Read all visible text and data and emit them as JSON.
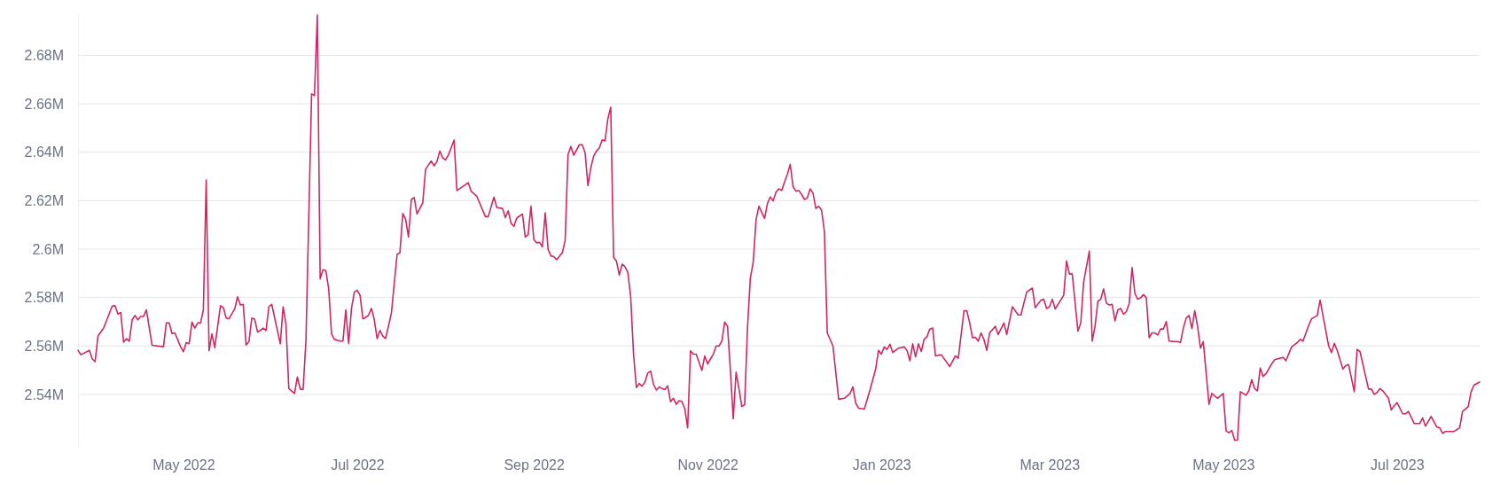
{
  "chart_data": {
    "type": "line",
    "color": "#d1265f",
    "grid": "y",
    "marker": "none",
    "line_style": "solid",
    "xlim": [
      "2022-03-25",
      "2023-07-30"
    ],
    "ylim": [
      2518000,
      2697000
    ],
    "xticks": [
      {
        "value": "2022-05-01",
        "label": "May 2022"
      },
      {
        "value": "2022-07-01",
        "label": "Jul 2022"
      },
      {
        "value": "2022-09-01",
        "label": "Sep 2022"
      },
      {
        "value": "2022-11-01",
        "label": "Nov 2022"
      },
      {
        "value": "2023-01-01",
        "label": "Jan 2023"
      },
      {
        "value": "2023-03-01",
        "label": "Mar 2023"
      },
      {
        "value": "2023-05-01",
        "label": "May 2023"
      },
      {
        "value": "2023-07-01",
        "label": "Jul 2023"
      }
    ],
    "yticks": [
      {
        "value": 2540000,
        "label": "2.54M"
      },
      {
        "value": 2560000,
        "label": "2.56M"
      },
      {
        "value": 2580000,
        "label": "2.58M"
      },
      {
        "value": 2600000,
        "label": "2.6M"
      },
      {
        "value": 2620000,
        "label": "2.62M"
      },
      {
        "value": 2640000,
        "label": "2.64M"
      },
      {
        "value": 2660000,
        "label": "2.66M"
      },
      {
        "value": 2680000,
        "label": "2.68M"
      }
    ],
    "x": [
      "2022-03-25",
      "2022-03-26",
      "2022-03-29",
      "2022-03-30",
      "2022-03-31",
      "2022-04-01",
      "2022-04-03",
      "2022-04-06",
      "2022-04-07",
      "2022-04-08",
      "2022-04-09",
      "2022-04-10",
      "2022-04-11",
      "2022-04-12",
      "2022-04-13",
      "2022-04-14",
      "2022-04-15",
      "2022-04-16",
      "2022-04-17",
      "2022-04-18",
      "2022-04-20",
      "2022-04-24",
      "2022-04-25",
      "2022-04-26",
      "2022-04-27",
      "2022-04-28",
      "2022-04-30",
      "2022-05-01",
      "2022-05-02",
      "2022-05-03",
      "2022-05-04",
      "2022-05-05",
      "2022-05-06",
      "2022-05-07",
      "2022-05-08",
      "2022-05-09",
      "2022-05-10",
      "2022-05-11",
      "2022-05-12",
      "2022-05-14",
      "2022-05-15",
      "2022-05-16",
      "2022-05-17",
      "2022-05-19",
      "2022-05-20",
      "2022-05-21",
      "2022-05-22",
      "2022-05-23",
      "2022-05-24",
      "2022-05-25",
      "2022-05-26",
      "2022-05-27",
      "2022-05-28",
      "2022-05-29",
      "2022-05-30",
      "2022-05-31",
      "2022-06-01",
      "2022-06-04",
      "2022-06-05",
      "2022-06-06",
      "2022-06-07",
      "2022-06-09",
      "2022-06-10",
      "2022-06-11",
      "2022-06-12",
      "2022-06-13",
      "2022-06-15",
      "2022-06-16",
      "2022-06-17",
      "2022-06-18",
      "2022-06-19",
      "2022-06-20",
      "2022-06-21",
      "2022-06-22",
      "2022-06-23",
      "2022-06-25",
      "2022-06-26",
      "2022-06-27",
      "2022-06-28",
      "2022-06-29",
      "2022-06-30",
      "2022-07-01",
      "2022-07-02",
      "2022-07-03",
      "2022-07-04",
      "2022-07-05",
      "2022-07-06",
      "2022-07-07",
      "2022-07-08",
      "2022-07-09",
      "2022-07-10",
      "2022-07-11",
      "2022-07-13",
      "2022-07-15",
      "2022-07-16",
      "2022-07-17",
      "2022-07-18",
      "2022-07-19",
      "2022-07-20",
      "2022-07-21",
      "2022-07-22",
      "2022-07-24",
      "2022-07-25",
      "2022-07-27",
      "2022-07-28",
      "2022-07-29",
      "2022-07-30",
      "2022-07-31",
      "2022-08-01",
      "2022-08-02",
      "2022-08-04",
      "2022-08-05",
      "2022-08-09",
      "2022-08-10",
      "2022-08-12",
      "2022-08-15",
      "2022-08-16",
      "2022-08-18",
      "2022-08-19",
      "2022-08-21",
      "2022-08-22",
      "2022-08-23",
      "2022-08-24",
      "2022-08-25",
      "2022-08-26",
      "2022-08-28",
      "2022-08-29",
      "2022-08-30",
      "2022-08-31",
      "2022-09-01",
      "2022-09-02",
      "2022-09-03",
      "2022-09-04",
      "2022-09-05",
      "2022-09-06",
      "2022-09-07",
      "2022-09-08",
      "2022-09-09",
      "2022-09-11",
      "2022-09-12",
      "2022-09-13",
      "2022-09-14",
      "2022-09-15",
      "2022-09-17",
      "2022-09-18",
      "2022-09-19",
      "2022-09-20",
      "2022-09-21",
      "2022-09-22",
      "2022-09-23",
      "2022-09-24",
      "2022-09-25",
      "2022-09-26",
      "2022-09-27",
      "2022-09-28",
      "2022-09-29",
      "2022-09-30",
      "2022-10-01",
      "2022-10-02",
      "2022-10-03",
      "2022-10-04",
      "2022-10-05",
      "2022-10-06",
      "2022-10-07",
      "2022-10-08",
      "2022-10-09",
      "2022-10-10",
      "2022-10-11",
      "2022-10-12",
      "2022-10-13",
      "2022-10-14",
      "2022-10-15",
      "2022-10-16",
      "2022-10-17",
      "2022-10-18",
      "2022-10-19",
      "2022-10-20",
      "2022-10-21",
      "2022-10-22",
      "2022-10-23",
      "2022-10-24",
      "2022-10-25",
      "2022-10-26",
      "2022-10-27",
      "2022-10-28",
      "2022-10-29",
      "2022-10-30",
      "2022-10-31",
      "2022-11-01",
      "2022-11-02",
      "2022-11-03",
      "2022-11-04",
      "2022-11-05",
      "2022-11-06",
      "2022-11-07",
      "2022-11-08",
      "2022-11-09",
      "2022-11-10",
      "2022-11-11",
      "2022-11-12",
      "2022-11-13",
      "2022-11-14",
      "2022-11-15",
      "2022-11-16",
      "2022-11-17",
      "2022-11-18",
      "2022-11-19",
      "2022-11-21",
      "2022-11-22",
      "2022-11-23",
      "2022-11-24",
      "2022-11-25",
      "2022-11-26",
      "2022-11-27",
      "2022-11-28",
      "2022-11-29",
      "2022-11-30",
      "2022-12-01",
      "2022-12-02",
      "2022-12-03",
      "2022-12-04",
      "2022-12-05",
      "2022-12-06",
      "2022-12-07",
      "2022-12-08",
      "2022-12-09",
      "2022-12-10",
      "2022-12-11",
      "2022-12-12",
      "2022-12-13",
      "2022-12-15",
      "2022-12-17",
      "2022-12-19",
      "2022-12-21",
      "2022-12-22",
      "2022-12-23",
      "2022-12-24",
      "2022-12-26",
      "2022-12-28",
      "2022-12-30",
      "2022-12-31",
      "2023-01-01",
      "2023-01-02",
      "2023-01-03",
      "2023-01-04",
      "2023-01-05",
      "2023-01-07",
      "2023-01-09",
      "2023-01-10",
      "2023-01-11",
      "2023-01-12",
      "2023-01-13",
      "2023-01-14",
      "2023-01-15",
      "2023-01-16",
      "2023-01-17",
      "2023-01-18",
      "2023-01-19",
      "2023-01-20",
      "2023-01-22",
      "2023-01-25",
      "2023-01-27",
      "2023-01-28",
      "2023-01-30",
      "2023-01-31",
      "2023-02-01",
      "2023-02-02",
      "2023-02-03",
      "2023-02-04",
      "2023-02-05",
      "2023-02-06",
      "2023-02-07",
      "2023-02-08",
      "2023-02-10",
      "2023-02-11",
      "2023-02-13",
      "2023-02-14",
      "2023-02-16",
      "2023-02-18",
      "2023-02-19",
      "2023-02-21",
      "2023-02-23",
      "2023-02-24",
      "2023-02-26",
      "2023-02-27",
      "2023-02-28",
      "2023-03-01",
      "2023-03-02",
      "2023-03-03",
      "2023-03-06",
      "2023-03-07",
      "2023-03-08",
      "2023-03-09",
      "2023-03-11",
      "2023-03-12",
      "2023-03-13",
      "2023-03-15",
      "2023-03-16",
      "2023-03-17",
      "2023-03-18",
      "2023-03-19",
      "2023-03-20",
      "2023-03-21",
      "2023-03-22",
      "2023-03-23",
      "2023-03-24",
      "2023-03-25",
      "2023-03-26",
      "2023-03-27",
      "2023-03-28",
      "2023-03-29",
      "2023-03-30",
      "2023-03-31",
      "2023-04-01",
      "2023-04-02",
      "2023-04-03",
      "2023-04-04",
      "2023-04-05",
      "2023-04-06",
      "2023-04-07",
      "2023-04-08",
      "2023-04-09",
      "2023-04-10",
      "2023-04-11",
      "2023-04-12",
      "2023-04-14",
      "2023-04-15",
      "2023-04-16",
      "2023-04-17",
      "2023-04-18",
      "2023-04-19",
      "2023-04-20",
      "2023-04-21",
      "2023-04-22",
      "2023-04-23",
      "2023-04-24",
      "2023-04-26",
      "2023-04-27",
      "2023-04-29",
      "2023-05-01",
      "2023-05-02",
      "2023-05-03",
      "2023-05-04",
      "2023-05-05",
      "2023-05-06",
      "2023-05-07",
      "2023-05-09",
      "2023-05-10",
      "2023-05-11",
      "2023-05-12",
      "2023-05-13",
      "2023-05-14",
      "2023-05-15",
      "2023-05-16",
      "2023-05-18",
      "2023-05-19",
      "2023-05-21",
      "2023-05-22",
      "2023-05-23",
      "2023-05-25",
      "2023-05-27",
      "2023-05-28",
      "2023-05-29",
      "2023-05-31",
      "2023-06-01",
      "2023-06-03",
      "2023-06-04",
      "2023-06-07",
      "2023-06-08",
      "2023-06-09",
      "2023-06-10",
      "2023-06-12",
      "2023-06-13",
      "2023-06-14",
      "2023-06-16",
      "2023-06-17",
      "2023-06-18",
      "2023-06-21",
      "2023-06-22",
      "2023-06-23",
      "2023-06-24",
      "2023-06-25",
      "2023-06-26",
      "2023-06-28",
      "2023-06-29",
      "2023-06-30",
      "2023-07-01",
      "2023-07-03",
      "2023-07-04",
      "2023-07-05",
      "2023-07-07",
      "2023-07-09",
      "2023-07-10",
      "2023-07-11",
      "2023-07-13",
      "2023-07-15",
      "2023-07-16",
      "2023-07-17",
      "2023-07-18",
      "2023-07-21",
      "2023-07-23",
      "2023-07-24",
      "2023-07-26",
      "2023-07-27",
      "2023-07-28",
      "2023-07-30"
    ],
    "values": [
      2558200,
      2556400,
      2558200,
      2554600,
      2553500,
      2564100,
      2567400,
      2576500,
      2576600,
      2573200,
      2573800,
      2561600,
      2563000,
      2562000,
      2570800,
      2572600,
      2570800,
      2572200,
      2572200,
      2574900,
      2560300,
      2559700,
      2569500,
      2569500,
      2565100,
      2565400,
      2559700,
      2557600,
      2561400,
      2560900,
      2569900,
      2567400,
      2569500,
      2569500,
      2574900,
      2628500,
      2558000,
      2565000,
      2559300,
      2576600,
      2575900,
      2571500,
      2571200,
      2575300,
      2580300,
      2576900,
      2577200,
      2560400,
      2561800,
      2571500,
      2571100,
      2565800,
      2566400,
      2567400,
      2566400,
      2576200,
      2577200,
      2560900,
      2576200,
      2568800,
      2542400,
      2540400,
      2547200,
      2542200,
      2542000,
      2562000,
      2664100,
      2663400,
      2696600,
      2587700,
      2591500,
      2591100,
      2583600,
      2565000,
      2562700,
      2562000,
      2562000,
      2574900,
      2560900,
      2575500,
      2582300,
      2583000,
      2580900,
      2571200,
      2571800,
      2572800,
      2575500,
      2570800,
      2563000,
      2566400,
      2564100,
      2563100,
      2573500,
      2597800,
      2598500,
      2614700,
      2612300,
      2605000,
      2620500,
      2621300,
      2614500,
      2619100,
      2633000,
      2636400,
      2634400,
      2636200,
      2640500,
      2637700,
      2636800,
      2638800,
      2645000,
      2624200,
      2627400,
      2623900,
      2621800,
      2613400,
      2613400,
      2621500,
      2617200,
      2616800,
      2613000,
      2615800,
      2610700,
      2609400,
      2612800,
      2614500,
      2605000,
      2605900,
      2617700,
      2603900,
      2602600,
      2602800,
      2600900,
      2615000,
      2599900,
      2597200,
      2596900,
      2595600,
      2598500,
      2603600,
      2639100,
      2642400,
      2638800,
      2643100,
      2643100,
      2639700,
      2626200,
      2633600,
      2638400,
      2640500,
      2641800,
      2645100,
      2644700,
      2653900,
      2658600,
      2596500,
      2595100,
      2589300,
      2593800,
      2592700,
      2590400,
      2580300,
      2556600,
      2542800,
      2544500,
      2543400,
      2545100,
      2548800,
      2549600,
      2544200,
      2541800,
      2543100,
      2542400,
      2542000,
      2543500,
      2537000,
      2538400,
      2535900,
      2537400,
      2537000,
      2534100,
      2526200,
      2558000,
      2556600,
      2556600,
      2553200,
      2549900,
      2555900,
      2552600,
      2554600,
      2556600,
      2560000,
      2560000,
      2562000,
      2569900,
      2568100,
      2549900,
      2529900,
      2549200,
      2542400,
      2535000,
      2535700,
      2567400,
      2588000,
      2594500,
      2612000,
      2617700,
      2612700,
      2618800,
      2621500,
      2619900,
      2623500,
      2624900,
      2624200,
      2627600,
      2630900,
      2635000,
      2625800,
      2623900,
      2624200,
      2622600,
      2620500,
      2621100,
      2624900,
      2623100,
      2616800,
      2617700,
      2616100,
      2607300,
      2565400,
      2560000,
      2538000,
      2538400,
      2540400,
      2543100,
      2536400,
      2534300,
      2533900,
      2541800,
      2550500,
      2558200,
      2556600,
      2559600,
      2558600,
      2560700,
      2557300,
      2559100,
      2559600,
      2558200,
      2553900,
      2560900,
      2555500,
      2560900,
      2557700,
      2562700,
      2563800,
      2567000,
      2567400,
      2555900,
      2556400,
      2551500,
      2555900,
      2554900,
      2574500,
      2574500,
      2569500,
      2563400,
      2563600,
      2562000,
      2565400,
      2562700,
      2558200,
      2565400,
      2568100,
      2564700,
      2569500,
      2564700,
      2576200,
      2572800,
      2572800,
      2582300,
      2583900,
      2575800,
      2578900,
      2579300,
      2575500,
      2576200,
      2579300,
      2575300,
      2580900,
      2595100,
      2589700,
      2589700,
      2566100,
      2569500,
      2586400,
      2599200,
      2562000,
      2568100,
      2578500,
      2579300,
      2583600,
      2577600,
      2576900,
      2577200,
      2570400,
      2574900,
      2575500,
      2573100,
      2574200,
      2577600,
      2592400,
      2581600,
      2579300,
      2579900,
      2581200,
      2579900,
      2563400,
      2565400,
      2565400,
      2564500,
      2567000,
      2567000,
      2570100,
      2562000,
      2561800,
      2561800,
      2561400,
      2567400,
      2571500,
      2572600,
      2567200,
      2574500,
      2568100,
      2559100,
      2561800,
      2535900,
      2540400,
      2538400,
      2540400,
      2524900,
      2524200,
      2525100,
      2521100,
      2521100,
      2541100,
      2539700,
      2541500,
      2546100,
      2542400,
      2541500,
      2550900,
      2547400,
      2548500,
      2552600,
      2554300,
      2555000,
      2555300,
      2553900,
      2559600,
      2561400,
      2562700,
      2562000,
      2568500,
      2571200,
      2572600,
      2578900,
      2560000,
      2557300,
      2561100,
      2558200,
      2550500,
      2551900,
      2552300,
      2541100,
      2558600,
      2557700,
      2542200,
      2542200,
      2540000,
      2540800,
      2542400,
      2541500,
      2538400,
      2533600,
      2535300,
      2536600,
      2532000,
      2532000,
      2533000,
      2528000,
      2528000,
      2530300,
      2526900,
      2530900,
      2526500,
      2526200,
      2523900,
      2524700,
      2524700,
      2526200,
      2533000,
      2535000,
      2541100,
      2543800,
      2545100
    ]
  }
}
